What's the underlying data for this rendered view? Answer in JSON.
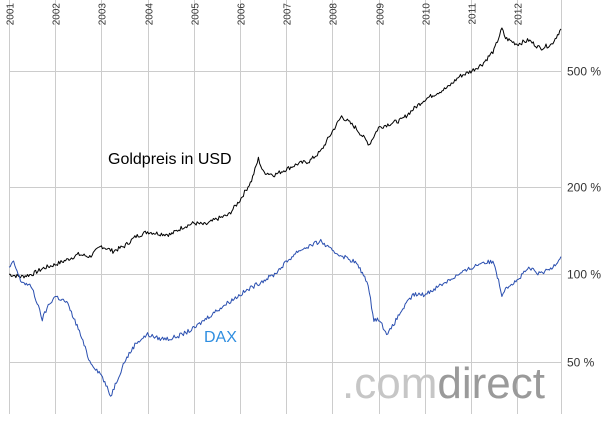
{
  "chart_data": {
    "type": "line",
    "title": "",
    "xlabel": "",
    "ylabel": "",
    "x_tick_labels": [
      "2001",
      "2002",
      "2003",
      "2004",
      "2005",
      "2006",
      "2007",
      "2008",
      "2009",
      "2010",
      "2011",
      "2012"
    ],
    "y_tick_labels": [
      "50 %",
      "100 %",
      "200 %",
      "500 %"
    ],
    "y_tick_values": [
      50,
      100,
      200,
      500
    ],
    "y_scale": "log",
    "ylim": [
      33,
      880
    ],
    "xlim": [
      2001.0,
      2012.95
    ],
    "grid": true,
    "legend": "inline labels",
    "series": [
      {
        "name": "Goldpreis in USD",
        "color": "#000000",
        "x": [
          2001.0,
          2001.25,
          2001.5,
          2001.75,
          2002.0,
          2002.25,
          2002.5,
          2002.75,
          2003.0,
          2003.25,
          2003.5,
          2003.75,
          2004.0,
          2004.25,
          2004.5,
          2004.75,
          2005.0,
          2005.25,
          2005.5,
          2005.75,
          2006.0,
          2006.25,
          2006.4,
          2006.5,
          2006.75,
          2007.0,
          2007.25,
          2007.5,
          2007.75,
          2008.0,
          2008.2,
          2008.5,
          2008.8,
          2009.0,
          2009.25,
          2009.5,
          2009.75,
          2010.0,
          2010.25,
          2010.5,
          2010.75,
          2011.0,
          2011.25,
          2011.5,
          2011.67,
          2011.75,
          2012.0,
          2012.25,
          2012.5,
          2012.75,
          2012.95
        ],
        "values": [
          100,
          98,
          100,
          105,
          108,
          112,
          117,
          115,
          125,
          120,
          125,
          135,
          140,
          138,
          137,
          145,
          150,
          148,
          155,
          160,
          180,
          210,
          250,
          225,
          220,
          230,
          240,
          245,
          265,
          310,
          350,
          320,
          280,
          320,
          330,
          340,
          370,
          400,
          420,
          440,
          480,
          500,
          530,
          590,
          700,
          650,
          620,
          640,
          600,
          620,
          700
        ]
      },
      {
        "name": "DAX",
        "color": "#2a4fb0",
        "x": [
          2001.0,
          2001.1,
          2001.25,
          2001.5,
          2001.72,
          2001.85,
          2002.0,
          2002.25,
          2002.5,
          2002.75,
          2003.0,
          2003.2,
          2003.5,
          2003.75,
          2004.0,
          2004.25,
          2004.5,
          2004.75,
          2005.0,
          2005.25,
          2005.5,
          2005.75,
          2006.0,
          2006.25,
          2006.5,
          2006.75,
          2007.0,
          2007.25,
          2007.5,
          2007.75,
          2008.0,
          2008.25,
          2008.5,
          2008.75,
          2008.9,
          2009.0,
          2009.2,
          2009.5,
          2009.75,
          2010.0,
          2010.25,
          2010.5,
          2010.75,
          2011.0,
          2011.25,
          2011.5,
          2011.67,
          2011.75,
          2012.0,
          2012.25,
          2012.5,
          2012.75,
          2012.95
        ],
        "values": [
          105,
          110,
          95,
          90,
          70,
          78,
          84,
          80,
          65,
          50,
          45,
          38,
          50,
          58,
          62,
          60,
          60,
          62,
          65,
          70,
          75,
          80,
          85,
          90,
          95,
          100,
          110,
          120,
          125,
          130,
          120,
          115,
          110,
          95,
          70,
          70,
          62,
          75,
          85,
          85,
          90,
          95,
          100,
          105,
          110,
          110,
          85,
          90,
          95,
          105,
          100,
          105,
          115
        ]
      }
    ],
    "annotations": [
      "Goldpreis in USD",
      "DAX"
    ]
  },
  "watermark": {
    "light": ".com",
    "dark": "direct"
  },
  "colors": {
    "gold": "#000000",
    "dax": "#2a4fb0",
    "dax_label": "#2f8ee0",
    "grid": "#cccccc"
  }
}
